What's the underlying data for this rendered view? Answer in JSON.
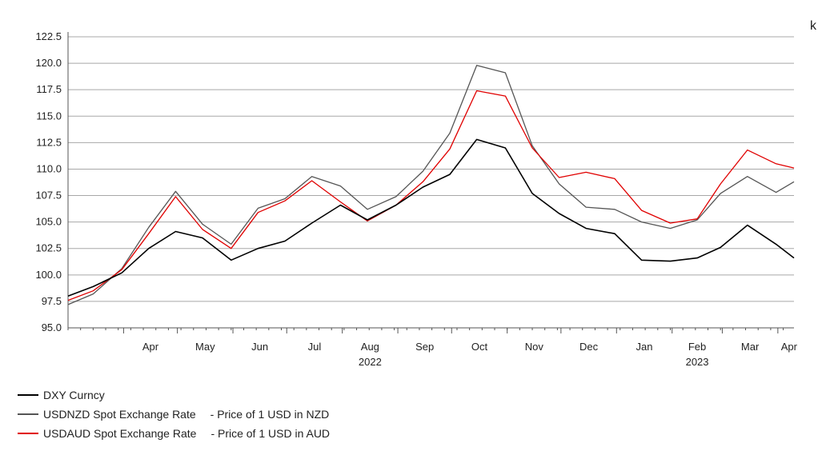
{
  "chart_data": {
    "type": "line",
    "xlabel": "",
    "ylabel": "",
    "ylim": [
      95.0,
      122.5
    ],
    "yticks": [
      "122.5",
      "120.0",
      "117.5",
      "115.0",
      "112.5",
      "110.0",
      "107.5",
      "105.0",
      "102.5",
      "100.0",
      "97.5",
      "95.0"
    ],
    "x_month_labels": [
      "Apr",
      "May",
      "Jun",
      "Jul",
      "Aug",
      "Sep",
      "Oct",
      "Nov",
      "Dec",
      "Jan",
      "Feb",
      "Mar",
      "Apr"
    ],
    "year_labels": [
      "2022",
      "2023"
    ],
    "grid": true,
    "legend_position": "bottom-left",
    "x_dates": [
      "2022-03-01",
      "2022-03-15",
      "2022-03-31",
      "2022-04-15",
      "2022-04-30",
      "2022-05-15",
      "2022-05-31",
      "2022-06-15",
      "2022-06-30",
      "2022-07-15",
      "2022-07-31",
      "2022-08-15",
      "2022-08-31",
      "2022-09-15",
      "2022-09-30",
      "2022-10-15",
      "2022-10-31",
      "2022-11-15",
      "2022-11-30",
      "2022-12-15",
      "2022-12-31",
      "2023-01-15",
      "2023-01-31",
      "2023-02-15",
      "2023-02-28",
      "2023-03-15",
      "2023-03-31",
      "2023-04-10"
    ],
    "series": [
      {
        "name": "DXY Curncy",
        "color": "#000000",
        "values": [
          98.0,
          98.9,
          100.2,
          102.5,
          104.1,
          103.5,
          101.4,
          102.5,
          103.2,
          104.9,
          106.6,
          105.2,
          106.6,
          108.3,
          109.5,
          112.8,
          112.0,
          107.7,
          105.8,
          104.4,
          103.9,
          101.4,
          101.3,
          101.6,
          102.6,
          104.7,
          102.9,
          101.6
        ]
      },
      {
        "name": "USDNZD Spot Exchange Rate",
        "note": "- Price of 1 USD in NZD",
        "color": "#555555",
        "values": [
          97.2,
          98.2,
          100.6,
          104.5,
          107.9,
          104.8,
          102.9,
          106.3,
          107.2,
          109.3,
          108.4,
          106.2,
          107.4,
          109.8,
          113.4,
          119.8,
          119.1,
          112.2,
          108.6,
          106.4,
          106.2,
          105.0,
          104.4,
          105.2,
          107.7,
          109.3,
          107.8,
          108.8
        ]
      },
      {
        "name": "USDAUD Spot Exchange Rate",
        "note": "- Price of 1 USD in AUD",
        "color": "#e00000",
        "values": [
          97.6,
          98.5,
          100.5,
          103.9,
          107.4,
          104.3,
          102.5,
          105.9,
          107.0,
          108.9,
          106.9,
          105.1,
          106.6,
          108.8,
          111.9,
          117.4,
          116.9,
          112.0,
          109.2,
          109.7,
          109.1,
          106.1,
          104.9,
          105.3,
          108.6,
          111.8,
          110.5,
          110.1
        ]
      }
    ]
  },
  "corner_text": "k"
}
